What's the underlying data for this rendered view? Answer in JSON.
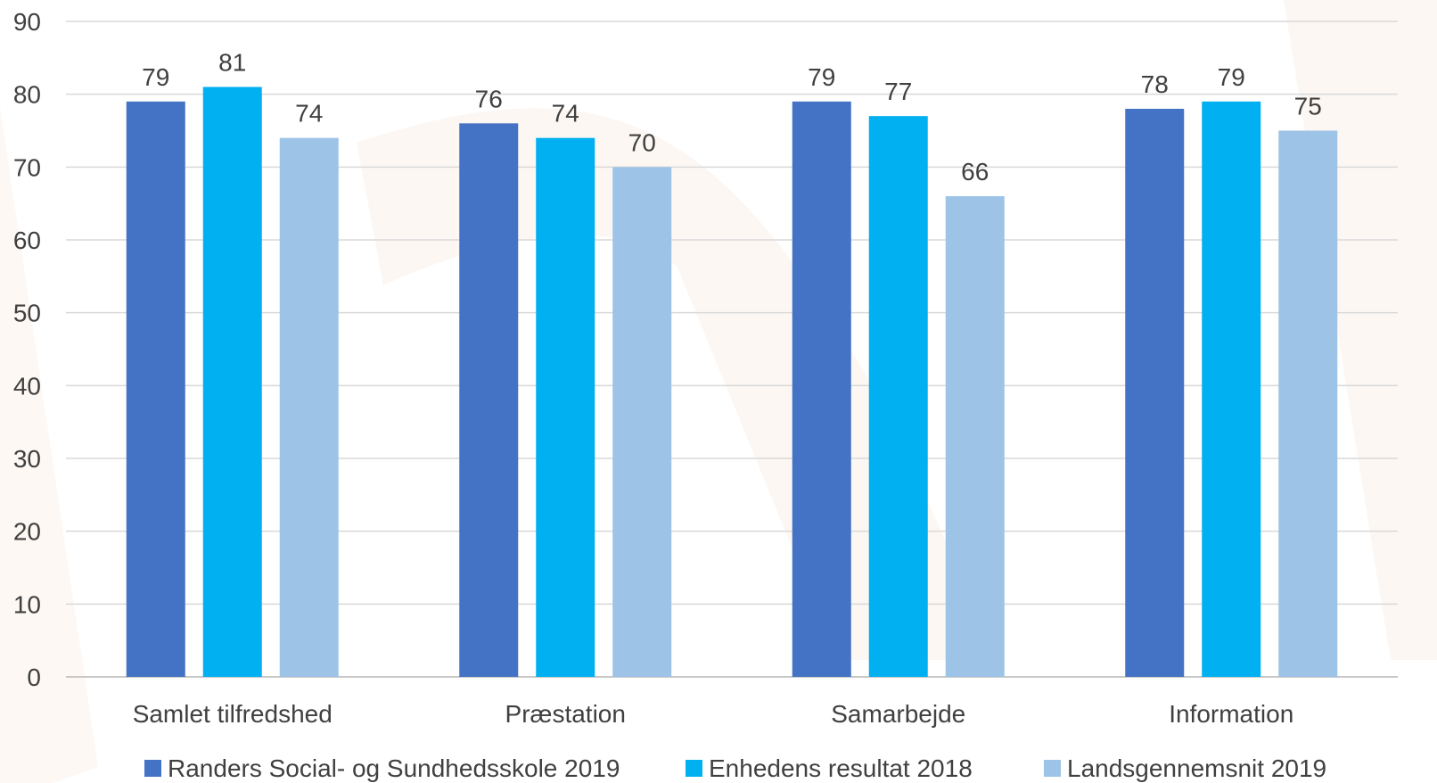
{
  "chart_data": {
    "type": "bar",
    "categories": [
      "Samlet tilfredshed",
      "Præstation",
      "Samarbejde",
      "Information"
    ],
    "series": [
      {
        "name": "Randers Social- og Sundhedsskole 2019",
        "color": "#4472c4",
        "values": [
          79,
          76,
          79,
          78
        ]
      },
      {
        "name": "Enhedens resultat 2018",
        "color": "#00b0f0",
        "values": [
          81,
          74,
          77,
          79
        ]
      },
      {
        "name": "Landsgennemsnit 2019",
        "color": "#9dc3e6",
        "values": [
          74,
          70,
          66,
          75
        ]
      }
    ],
    "yticks": [
      "0",
      "10",
      "20",
      "30",
      "40",
      "50",
      "60",
      "70",
      "80",
      "90"
    ],
    "ylim": [
      0,
      90
    ],
    "grid": true,
    "legend_position": "bottom",
    "data_labels": true
  }
}
